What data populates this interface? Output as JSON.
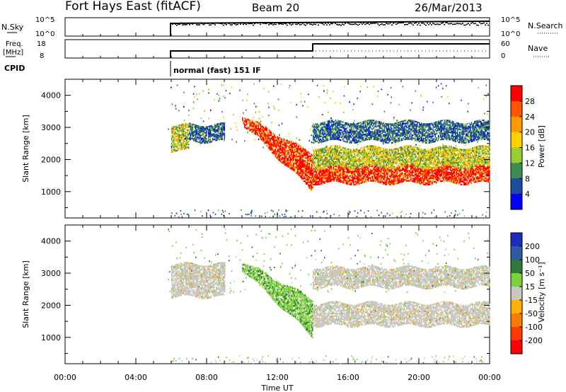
{
  "header": {
    "title": "Fort Hays East (fitACF)",
    "beam": "Beam 20",
    "date": "26/Mar/2013"
  },
  "top_panels": {
    "nsky_label": "N.Sky",
    "nsky_ticks": [
      "10^5",
      "10^0"
    ],
    "nsearch_label": "N.Search",
    "nsearch_ticks": [
      "10^5",
      "10^0"
    ],
    "freq_label_1": "Freq.",
    "freq_label_2": "[MHz]",
    "freq_ticks": [
      "18",
      "8"
    ],
    "nave_label": "Nave",
    "nave_ticks": [
      "60",
      "0"
    ],
    "cpid_label": "CPID",
    "cpid_text": "normal (fast) 151 IF"
  },
  "chart_data": [
    {
      "type": "heatmap",
      "name": "power",
      "ylabel": "Slant Range [km]",
      "yticks": [
        1000,
        2000,
        3000,
        4000
      ],
      "ylim": [
        180,
        4500
      ],
      "xlim": [
        0,
        24
      ],
      "colorbar": {
        "label": "Power [dB]",
        "ticks": [
          "28",
          "24",
          "20",
          "16",
          "12",
          "8",
          "4"
        ],
        "colors": [
          "#ff0000",
          "#ff5500",
          "#ff9900",
          "#ffd000",
          "#9acd32",
          "#3c8c50",
          "#1e4ca0",
          "#0000ff"
        ]
      },
      "regions": [
        {
          "t": [
            6.0,
            7.0
          ],
          "r": [
            2300,
            3100
          ],
          "level": "medium"
        },
        {
          "t": [
            7.0,
            9.0
          ],
          "r": [
            2600,
            3100
          ],
          "level": "low"
        },
        {
          "t": [
            10.0,
            14.0
          ],
          "r": [
            900,
            3400
          ],
          "level": "high",
          "shape": "descending"
        },
        {
          "t": [
            14.0,
            24.0
          ],
          "r": [
            1300,
            1800
          ],
          "level": "high"
        },
        {
          "t": [
            14.0,
            24.0
          ],
          "r": [
            1800,
            2400
          ],
          "level": "medium"
        },
        {
          "t": [
            14.0,
            24.0
          ],
          "r": [
            2600,
            3200
          ],
          "level": "low"
        }
      ]
    },
    {
      "type": "heatmap",
      "name": "velocity",
      "ylabel": "Slant Range [km]",
      "yticks": [
        1000,
        2000,
        3000,
        4000
      ],
      "ylim": [
        180,
        4500
      ],
      "xlim": [
        0,
        24
      ],
      "xticks": [
        "00:00",
        "04:00",
        "08:00",
        "12:00",
        "16:00",
        "20:00",
        "00:00"
      ],
      "xlabel": "Time UT",
      "colorbar": {
        "label": "Velocity [m s⁻¹]",
        "ticks": [
          "200",
          "100",
          "50",
          "15",
          "-15",
          "-50",
          "-100",
          "-200"
        ],
        "colors": [
          "#1a2dbf",
          "#2f5aa8",
          "#2f7a3a",
          "#7cd23a",
          "#c8c8c0",
          "#ffb000",
          "#ff7a00",
          "#ff3c00",
          "#ff0000"
        ]
      },
      "regions": [
        {
          "t": [
            6.0,
            9.0
          ],
          "r": [
            2300,
            3300
          ],
          "level": "ground"
        },
        {
          "t": [
            10.0,
            14.0
          ],
          "r": [
            900,
            3400
          ],
          "level": "positive-low",
          "shape": "descending"
        },
        {
          "t": [
            14.0,
            24.0
          ],
          "r": [
            1400,
            2100
          ],
          "level": "ground"
        },
        {
          "t": [
            14.0,
            24.0
          ],
          "r": [
            2600,
            3200
          ],
          "level": "ground"
        }
      ]
    }
  ]
}
